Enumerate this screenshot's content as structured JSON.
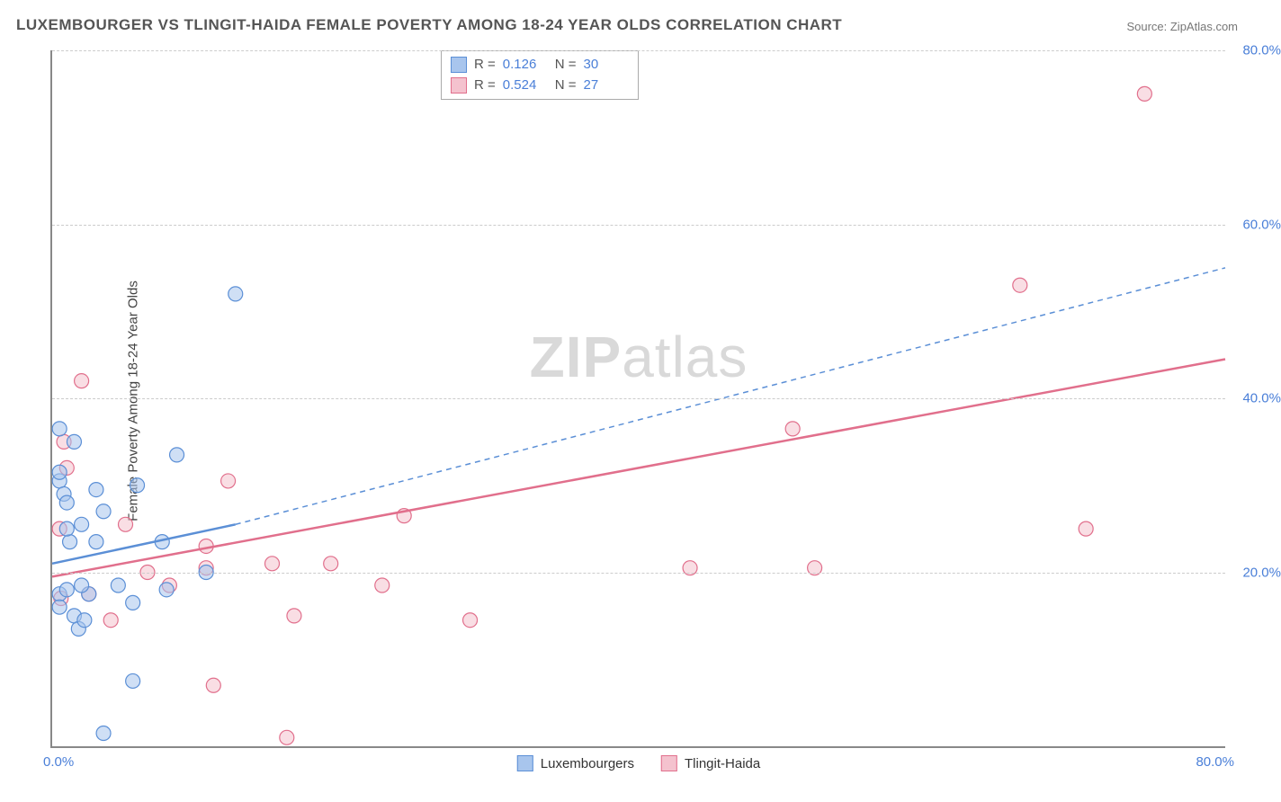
{
  "title": "LUXEMBOURGER VS TLINGIT-HAIDA FEMALE POVERTY AMONG 18-24 YEAR OLDS CORRELATION CHART",
  "source": "Source: ZipAtlas.com",
  "ylabel": "Female Poverty Among 18-24 Year Olds",
  "watermark_bold": "ZIP",
  "watermark_light": "atlas",
  "chart": {
    "type": "scatter-correlation",
    "background_color": "#ffffff",
    "grid_color": "#cccccc",
    "grid_dash": "4,4",
    "axis_color": "#888888",
    "text_color": "#555555",
    "tick_color": "#4a7fd8",
    "title_fontsize": 17,
    "label_fontsize": 15,
    "tick_fontsize": 15,
    "xlim": [
      0,
      80
    ],
    "ylim": [
      0,
      80
    ],
    "yticks": [
      20,
      40,
      60,
      80
    ],
    "ytick_labels": [
      "20.0%",
      "40.0%",
      "60.0%",
      "80.0%"
    ],
    "xtick_labels": [
      "0.0%",
      "80.0%"
    ],
    "marker_radius": 8,
    "marker_opacity": 0.55,
    "series": [
      {
        "name": "Luxembourgers",
        "color_fill": "#a8c5ed",
        "color_stroke": "#5b8fd6",
        "R": "0.126",
        "N": "30",
        "points": [
          [
            0.5,
            36.5
          ],
          [
            0.5,
            30.5
          ],
          [
            0.5,
            31.5
          ],
          [
            0.8,
            29.0
          ],
          [
            1.0,
            28.0
          ],
          [
            0.5,
            17.5
          ],
          [
            0.5,
            16.0
          ],
          [
            1.0,
            18.0
          ],
          [
            1.2,
            23.5
          ],
          [
            1.5,
            15.0
          ],
          [
            1.8,
            13.5
          ],
          [
            2.5,
            17.5
          ],
          [
            2.0,
            25.5
          ],
          [
            3.0,
            23.5
          ],
          [
            3.0,
            29.5
          ],
          [
            3.5,
            27.0
          ],
          [
            4.5,
            18.5
          ],
          [
            5.5,
            16.5
          ],
          [
            5.8,
            30.0
          ],
          [
            7.5,
            23.5
          ],
          [
            7.8,
            18.0
          ],
          [
            8.5,
            33.5
          ],
          [
            5.5,
            7.5
          ],
          [
            3.5,
            1.5
          ],
          [
            2.2,
            14.5
          ],
          [
            1.0,
            25.0
          ],
          [
            1.5,
            35.0
          ],
          [
            2.0,
            18.5
          ],
          [
            12.5,
            52.0
          ],
          [
            10.5,
            20.0
          ]
        ],
        "trend_solid": {
          "x1": 0,
          "y1": 21.0,
          "x2": 12.5,
          "y2": 25.5,
          "width": 2.5
        },
        "trend_dashed": {
          "x1": 12.5,
          "y1": 25.5,
          "x2": 80,
          "y2": 55.0,
          "width": 1.5,
          "dash": "6,5"
        }
      },
      {
        "name": "Tlingit-Haida",
        "color_fill": "#f4c2ce",
        "color_stroke": "#e16f8c",
        "R": "0.524",
        "N": "27",
        "points": [
          [
            0.5,
            25.0
          ],
          [
            0.8,
            35.0
          ],
          [
            1.0,
            32.0
          ],
          [
            0.6,
            17.0
          ],
          [
            2.0,
            42.0
          ],
          [
            2.5,
            17.5
          ],
          [
            4.0,
            14.5
          ],
          [
            6.5,
            20.0
          ],
          [
            8.0,
            18.5
          ],
          [
            10.5,
            23.0
          ],
          [
            10.5,
            20.5
          ],
          [
            12.0,
            30.5
          ],
          [
            11.0,
            7.0
          ],
          [
            15.0,
            21.0
          ],
          [
            16.5,
            15.0
          ],
          [
            16.0,
            1.0
          ],
          [
            19.0,
            21.0
          ],
          [
            22.5,
            18.5
          ],
          [
            24.0,
            26.5
          ],
          [
            28.5,
            14.5
          ],
          [
            43.5,
            20.5
          ],
          [
            50.5,
            36.5
          ],
          [
            52.0,
            20.5
          ],
          [
            66.0,
            53.0
          ],
          [
            70.5,
            25.0
          ],
          [
            74.5,
            75.0
          ],
          [
            5.0,
            25.5
          ]
        ],
        "trend_solid": {
          "x1": 0,
          "y1": 19.5,
          "x2": 80,
          "y2": 44.5,
          "width": 2.5
        }
      }
    ],
    "stats_legend_labels": {
      "R": "R  =",
      "N": "N  ="
    }
  }
}
